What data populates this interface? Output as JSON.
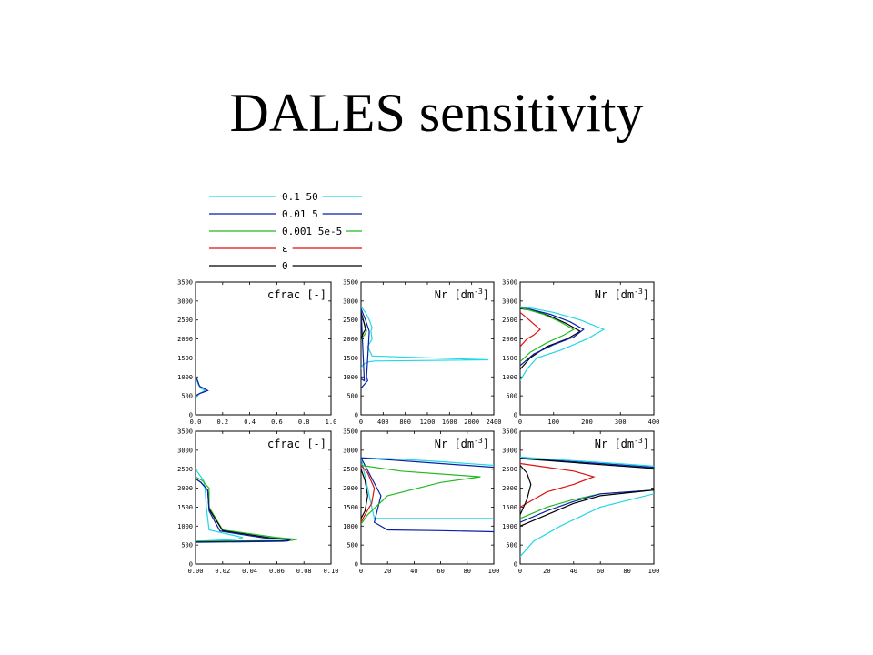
{
  "title": "DALES sensitivity",
  "colors": {
    "cyan": "#22d6e6",
    "blue": "#0a1ea6",
    "green": "#22bb22",
    "red": "#dd1111",
    "black": "#000000"
  },
  "legend": [
    {
      "label": "0.1 50",
      "color_key": "cyan"
    },
    {
      "label": "0.01 5",
      "color_key": "blue"
    },
    {
      "label": "0.001 5e-5",
      "color_key": "green"
    },
    {
      "label": "ε",
      "color_key": "red"
    },
    {
      "label": "0",
      "color_key": "black"
    }
  ],
  "chart_data": [
    {
      "type": "line",
      "title": "cfrac [-]",
      "title_sup": "",
      "xlim": [
        0,
        1
      ],
      "xticks": [
        "0.0",
        "0.2",
        "0.4",
        "0.6",
        "0.8",
        "1.0"
      ],
      "ylim": [
        0,
        3500
      ],
      "yticks": [
        "0",
        "500",
        "1000",
        "1500",
        "2000",
        "2500",
        "3000",
        "3500"
      ],
      "series": [
        {
          "color_key": "cyan",
          "x": [
            0,
            0.02,
            0.03,
            0.05,
            0.07,
            0.04,
            0.02,
            0.01,
            0
          ],
          "y": [
            450,
            520,
            560,
            600,
            640,
            700,
            800,
            900,
            1000
          ]
        },
        {
          "color_key": "blue",
          "x": [
            0,
            0.03,
            0.06,
            0.09,
            0.06,
            0.03,
            0.02,
            0.01,
            0
          ],
          "y": [
            500,
            560,
            600,
            640,
            700,
            750,
            850,
            950,
            1000
          ]
        }
      ]
    },
    {
      "type": "line",
      "title": "Nr [dm",
      "title_sup": "-3",
      "xlim": [
        0,
        2400
      ],
      "xticks": [
        "0",
        "400",
        "800",
        "1200",
        "1600",
        "2000",
        "2400"
      ],
      "ylim": [
        0,
        3500
      ],
      "yticks": [
        "0",
        "500",
        "1000",
        "1500",
        "2000",
        "2500",
        "3000",
        "3500"
      ],
      "series": [
        {
          "color_key": "cyan",
          "x": [
            0,
            20,
            60,
            150,
            250,
            2300,
            200,
            120,
            200,
            180,
            200,
            150,
            80,
            0
          ],
          "y": [
            1200,
            1300,
            1350,
            1400,
            1420,
            1450,
            1550,
            1800,
            2000,
            2200,
            2300,
            2500,
            2700,
            2850
          ]
        },
        {
          "color_key": "blue",
          "x": [
            0,
            60,
            120,
            100,
            150,
            80,
            0,
            60,
            0
          ],
          "y": [
            700,
            800,
            900,
            1000,
            2200,
            2500,
            2800,
            900,
            950
          ]
        },
        {
          "color_key": "green",
          "x": [
            0,
            60,
            100,
            80,
            40,
            0
          ],
          "y": [
            2000,
            2100,
            2200,
            2300,
            2500,
            2700
          ]
        },
        {
          "color_key": "black",
          "x": [
            0,
            40,
            80,
            60,
            20,
            0
          ],
          "y": [
            2000,
            2150,
            2250,
            2400,
            2600,
            2700
          ]
        }
      ]
    },
    {
      "type": "line",
      "title": "Nr [dm",
      "title_sup": "-3",
      "xlim": [
        0,
        400
      ],
      "xticks": [
        "0",
        "100",
        "200",
        "300",
        "400"
      ],
      "ylim": [
        0,
        3500
      ],
      "yticks": [
        "0",
        "500",
        "1000",
        "1500",
        "2000",
        "2500",
        "3000",
        "3500"
      ],
      "series": [
        {
          "color_key": "cyan",
          "x": [
            0,
            20,
            50,
            120,
            200,
            250,
            180,
            100,
            40,
            0
          ],
          "y": [
            900,
            1200,
            1500,
            1700,
            2000,
            2250,
            2500,
            2700,
            2800,
            2850
          ]
        },
        {
          "color_key": "black",
          "x": [
            0,
            30,
            80,
            140,
            180,
            140,
            90,
            40,
            0
          ],
          "y": [
            1200,
            1500,
            1800,
            2000,
            2200,
            2400,
            2600,
            2750,
            2800
          ]
        },
        {
          "color_key": "blue",
          "x": [
            0,
            40,
            100,
            160,
            190,
            150,
            90,
            30,
            0
          ],
          "y": [
            1300,
            1600,
            1850,
            2050,
            2250,
            2450,
            2650,
            2780,
            2820
          ]
        },
        {
          "color_key": "green",
          "x": [
            0,
            30,
            80,
            130,
            160,
            120,
            70,
            20,
            0
          ],
          "y": [
            1400,
            1650,
            1900,
            2100,
            2250,
            2450,
            2650,
            2780,
            2820
          ]
        },
        {
          "color_key": "red",
          "x": [
            0,
            20,
            40,
            60,
            40,
            20,
            0
          ],
          "y": [
            1800,
            2000,
            2100,
            2250,
            2400,
            2550,
            2700
          ]
        }
      ]
    },
    {
      "type": "line",
      "title": "cfrac [-]",
      "title_sup": "",
      "xlim": [
        0,
        0.1
      ],
      "xticks": [
        "0.00",
        "0.02",
        "0.04",
        "0.06",
        "0.08",
        "0.10"
      ],
      "ylim": [
        0,
        3500
      ],
      "yticks": [
        "0",
        "500",
        "1000",
        "1500",
        "2000",
        "2500",
        "3000",
        "3500"
      ],
      "series": [
        {
          "color_key": "cyan",
          "x": [
            0,
            0.03,
            0.035,
            0.01,
            0.008,
            0.007,
            0.006,
            0.003,
            0
          ],
          "y": [
            600,
            650,
            700,
            900,
            1500,
            2000,
            2200,
            2350,
            2500
          ]
        },
        {
          "color_key": "green",
          "x": [
            0,
            0.07,
            0.075,
            0.06,
            0.02,
            0.01,
            0.01,
            0.005,
            0
          ],
          "y": [
            600,
            620,
            650,
            700,
            900,
            1500,
            2000,
            2200,
            2300
          ]
        },
        {
          "color_key": "black",
          "x": [
            0,
            0.068,
            0.07,
            0.055,
            0.02,
            0.01,
            0.009,
            0.004,
            0
          ],
          "y": [
            580,
            610,
            640,
            690,
            880,
            1450,
            1950,
            2150,
            2250
          ]
        },
        {
          "color_key": "blue",
          "x": [
            0,
            0.065,
            0.07,
            0.05,
            0.018,
            0.01,
            0.009,
            0.004,
            0
          ],
          "y": [
            570,
            600,
            640,
            690,
            870,
            1400,
            1950,
            2150,
            2250
          ]
        }
      ]
    },
    {
      "type": "line",
      "title": "Nr [dm",
      "title_sup": "-3",
      "xlim": [
        0,
        100
      ],
      "xticks": [
        "0",
        "20",
        "40",
        "60",
        "80",
        "100"
      ],
      "ylim": [
        0,
        3500
      ],
      "yticks": [
        "0",
        "500",
        "1000",
        "1500",
        "2000",
        "2500",
        "3000",
        "3500"
      ],
      "series": [
        {
          "color_key": "cyan",
          "x": [
            100,
            60,
            20,
            0,
            10,
            100
          ],
          "y": [
            2600,
            2700,
            2780,
            2800,
            1200,
            1200
          ]
        },
        {
          "color_key": "blue",
          "x": [
            100,
            60,
            20,
            0,
            15,
            10,
            20,
            60,
            100
          ],
          "y": [
            2550,
            2650,
            2750,
            2800,
            1800,
            1100,
            900,
            880,
            850
          ]
        },
        {
          "color_key": "green",
          "x": [
            0,
            30,
            70,
            90,
            60,
            20,
            5,
            0
          ],
          "y": [
            2600,
            2450,
            2350,
            2300,
            2150,
            1800,
            1300,
            1050
          ]
        },
        {
          "color_key": "red",
          "x": [
            0,
            5,
            10,
            8,
            3,
            0
          ],
          "y": [
            2600,
            2400,
            2000,
            1600,
            1300,
            1100
          ]
        },
        {
          "color_key": "black",
          "x": [
            0,
            3,
            5,
            3,
            0
          ],
          "y": [
            2500,
            2200,
            1800,
            1400,
            1200
          ]
        }
      ]
    },
    {
      "type": "line",
      "title": "Nr [dm",
      "title_sup": "-3",
      "xlim": [
        0,
        100
      ],
      "xticks": [
        "0",
        "20",
        "40",
        "60",
        "80",
        "100"
      ],
      "ylim": [
        0,
        3500
      ],
      "yticks": [
        "0",
        "500",
        "1000",
        "1500",
        "2000",
        "2500",
        "3000",
        "3500"
      ],
      "series": [
        {
          "color_key": "blue",
          "x": [
            100,
            60,
            20,
            0
          ],
          "y": [
            2550,
            2650,
            2750,
            2800
          ]
        },
        {
          "color_key": "black",
          "x": [
            100,
            60,
            20,
            0
          ],
          "y": [
            2520,
            2620,
            2730,
            2780
          ]
        },
        {
          "color_key": "cyan",
          "x": [
            100,
            60,
            20,
            0
          ],
          "y": [
            2580,
            2680,
            2770,
            2820
          ]
        },
        {
          "color_key": "green",
          "x": [
            0,
            20,
            40,
            60,
            100
          ],
          "y": [
            1200,
            1500,
            1700,
            1850,
            1950
          ]
        },
        {
          "color_key": "blue",
          "x": [
            0,
            20,
            40,
            60,
            100
          ],
          "y": [
            1100,
            1400,
            1650,
            1850,
            1950
          ]
        },
        {
          "color_key": "black",
          "x": [
            0,
            20,
            40,
            60,
            100
          ],
          "y": [
            1000,
            1300,
            1600,
            1800,
            1950
          ]
        },
        {
          "color_key": "cyan",
          "x": [
            0,
            10,
            30,
            60,
            100
          ],
          "y": [
            200,
            600,
            1000,
            1500,
            1850
          ]
        },
        {
          "color_key": "red",
          "x": [
            0,
            20,
            40,
            55,
            40,
            20,
            0
          ],
          "y": [
            1500,
            1900,
            2100,
            2300,
            2450,
            2550,
            2650
          ]
        },
        {
          "color_key": "black",
          "x": [
            0,
            5,
            8,
            5,
            0
          ],
          "y": [
            1300,
            1700,
            2100,
            2400,
            2600
          ]
        }
      ]
    }
  ]
}
